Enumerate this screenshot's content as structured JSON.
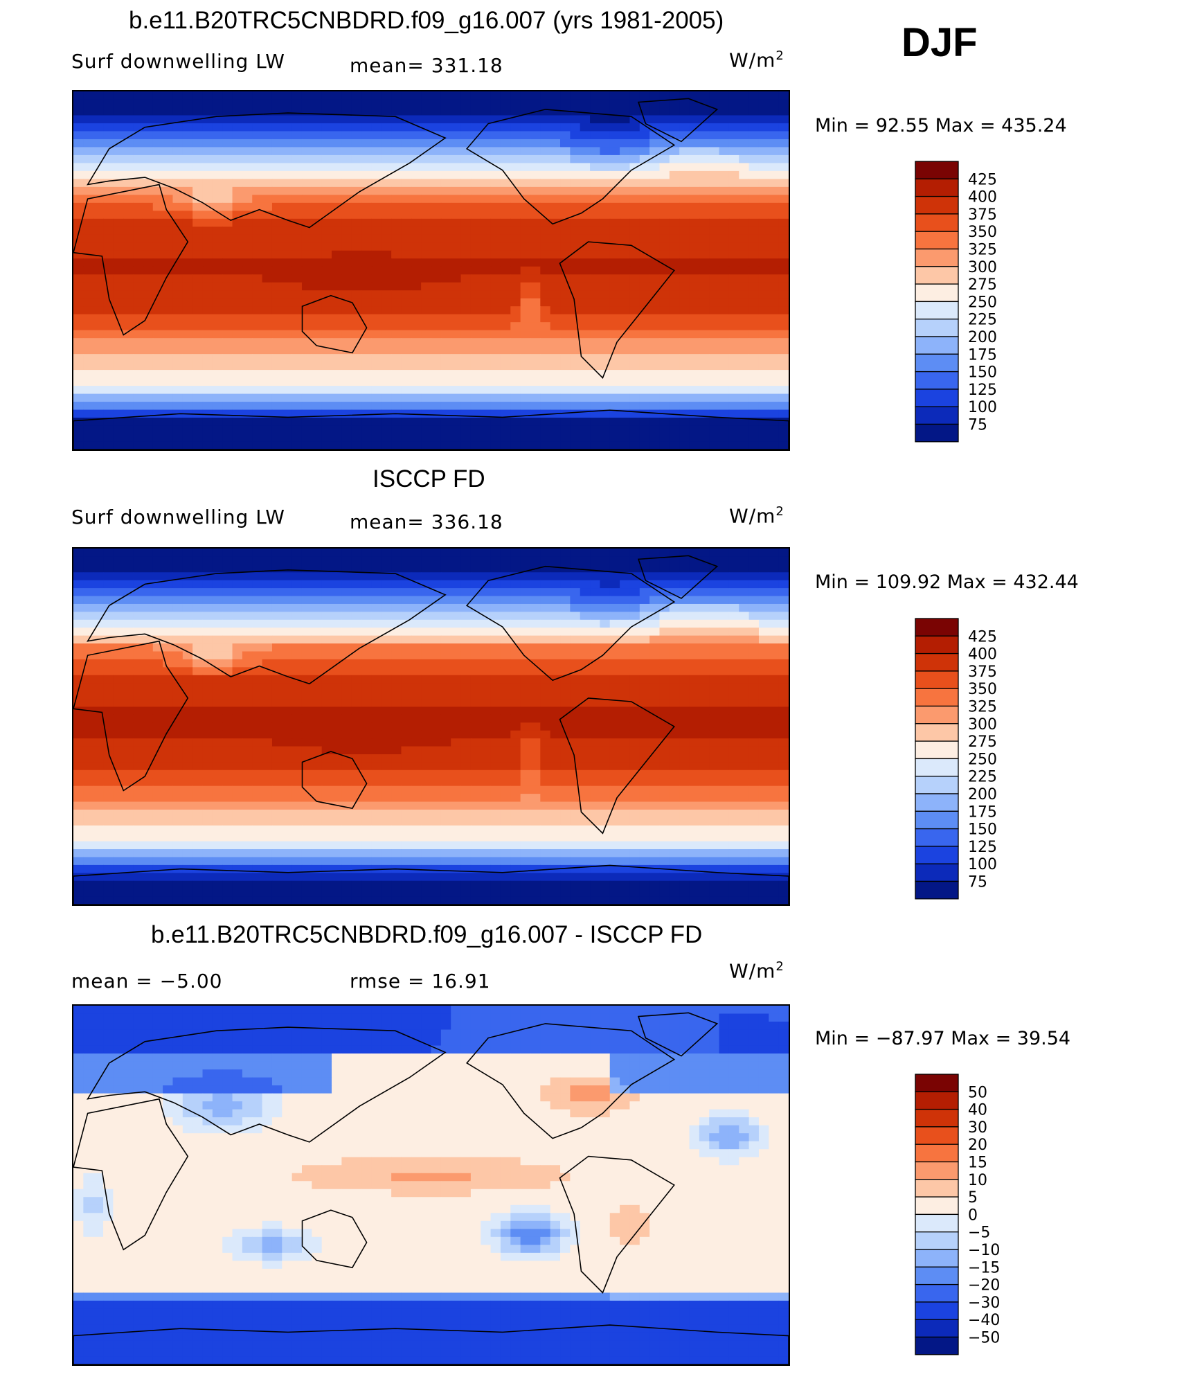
{
  "season": "DJF",
  "panels": [
    {
      "title": "b.e11.B20TRC5CNBDRD.f09_g16.007 (yrs 1981-2005)",
      "left_label": "Surf  downwelling  LW",
      "center_label": "mean=  331.18",
      "units": "W/m",
      "units_sup": "2",
      "minmax": "Min  =    92.55  Max  =  435.24",
      "scheme": "abs",
      "map_mode": "model"
    },
    {
      "title": "ISCCP FD",
      "left_label": "Surf  downwelling  LW",
      "center_label": "mean=  336.18",
      "units": "W/m",
      "units_sup": "2",
      "minmax": "Min  =  109.92  Max  =  432.44",
      "scheme": "abs",
      "map_mode": "obs"
    },
    {
      "title": "b.e11.B20TRC5CNBDRD.f09_g16.007 - ISCCP FD",
      "left_label": "mean  =    −5.00",
      "center_label": "rmse  =    16.91",
      "units": "W/m",
      "units_sup": "2",
      "minmax": "Min  =  −87.97  Max  =    39.54",
      "scheme": "diff",
      "map_mode": "diff"
    }
  ],
  "colorbars": {
    "abs": {
      "labels": [
        "425",
        "400",
        "375",
        "350",
        "325",
        "300",
        "275",
        "250",
        "225",
        "200",
        "175",
        "150",
        "125",
        "100",
        "75"
      ],
      "colors": [
        "#7a0403",
        "#b41e02",
        "#cf3308",
        "#e8501c",
        "#f7743f",
        "#fb9a6e",
        "#fdc7a7",
        "#fdeee2",
        "#dbe9fb",
        "#b6d1fb",
        "#8db3fa",
        "#5d8df4",
        "#3966ee",
        "#1b43e0",
        "#0c2aba",
        "#031786"
      ]
    },
    "diff": {
      "labels": [
        "50",
        "40",
        "30",
        "20",
        "15",
        "10",
        "5",
        "0",
        "−5",
        "−10",
        "−15",
        "−20",
        "−30",
        "−40",
        "−50"
      ],
      "colors": [
        "#7a0403",
        "#b41e02",
        "#cf3308",
        "#e8501c",
        "#f7743f",
        "#fb9a6e",
        "#fdc7a7",
        "#fdeee2",
        "#dbe9fb",
        "#b6d1fb",
        "#8db3fa",
        "#5d8df4",
        "#3966ee",
        "#1b43e0",
        "#0c2aba",
        "#031786"
      ]
    }
  }
}
